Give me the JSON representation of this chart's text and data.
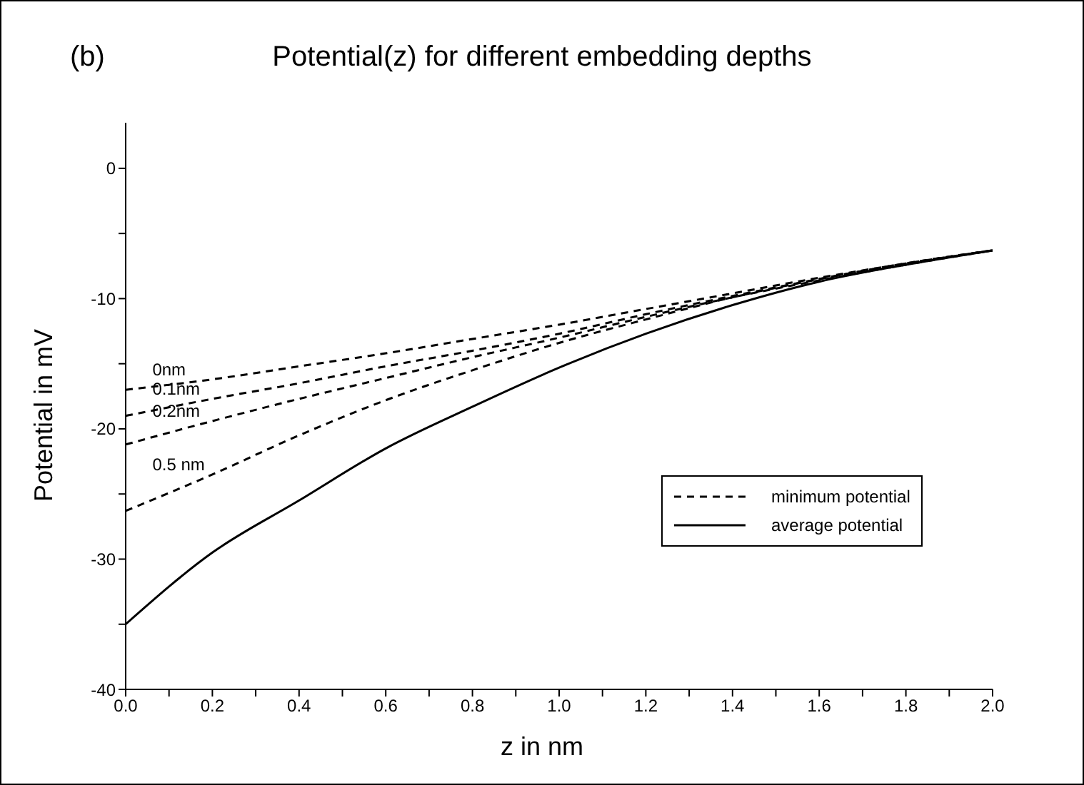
{
  "chart_data": {
    "type": "line",
    "title": "Potential(z) for different embedding depths",
    "xlabel": "z in nm",
    "ylabel": "Potential in mV",
    "annotations": [
      "(b)",
      "minimum potential"
    ],
    "x": [
      0,
      0.2,
      0.4,
      0.6,
      0.8,
      1.0,
      1.2,
      1.4,
      1.6,
      1.8,
      2.0
    ],
    "series": [
      {
        "name": "0nm",
        "color": "#000000",
        "line_style": "dashed",
        "values": [
          -17,
          -16.2,
          -15.2,
          -14.2,
          -13.1,
          -12,
          -10.8,
          -9.6,
          -8.4,
          -7.3,
          -6.3
        ]
      },
      {
        "name": "0.1nm",
        "color": "#000000",
        "line_style": "dashed",
        "values": [
          -19,
          -17.7,
          -16.5,
          -15.2,
          -14,
          -12.7,
          -11.2,
          -9.8,
          -8.5,
          -7.3,
          -6.3
        ]
      },
      {
        "name": "0.2nm",
        "color": "#000000",
        "line_style": "dashed",
        "values": [
          -21.2,
          -19.4,
          -17.7,
          -16.1,
          -14.5,
          -13,
          -11.4,
          -9.9,
          -8.6,
          -7.4,
          -6.3
        ]
      },
      {
        "name": "0.5 nm",
        "color": "#000000",
        "line_style": "dashed",
        "values": [
          -26.3,
          -23.5,
          -20.5,
          -17.8,
          -15.5,
          -13.4,
          -11.6,
          -9.9,
          -8.5,
          -7.3,
          -6.3
        ]
      },
      {
        "name": "average potential",
        "color": "#000000",
        "line_style": "solid",
        "values": [
          -35,
          -29.5,
          -25.5,
          -21.5,
          -18.3,
          -15.3,
          -12.7,
          -10.5,
          -8.7,
          -7.4,
          -6.3
        ]
      }
    ],
    "xlim": [
      0,
      2
    ],
    "xticks": [
      {
        "value": 0,
        "label": "0.0"
      },
      {
        "value": 0.1,
        "label": null
      },
      {
        "value": 0.2,
        "label": "0.2"
      },
      {
        "value": 0.3,
        "label": null
      },
      {
        "value": 0.4,
        "label": "0.4"
      },
      {
        "value": 0.5,
        "label": null
      },
      {
        "value": 0.6,
        "label": "0.6"
      },
      {
        "value": 0.7,
        "label": null
      },
      {
        "value": 0.8,
        "label": "0.8"
      },
      {
        "value": 0.9,
        "label": null
      },
      {
        "value": 1,
        "label": "1.0"
      },
      {
        "value": 1.1,
        "label": null
      },
      {
        "value": 1.2,
        "label": "1.2"
      },
      {
        "value": 1.3,
        "label": null
      },
      {
        "value": 1.4,
        "label": "1.4"
      },
      {
        "value": 1.5,
        "label": null
      },
      {
        "value": 1.6,
        "label": "1.6"
      },
      {
        "value": 1.7,
        "label": null
      },
      {
        "value": 1.8,
        "label": "1.8"
      },
      {
        "value": 1.9,
        "label": null
      },
      {
        "value": 2,
        "label": "2.0"
      }
    ],
    "ylim": [
      -40,
      3.5
    ],
    "yticks": [
      -40,
      {
        "value": -35,
        "label": null
      },
      -30,
      {
        "value": -25,
        "label": null
      },
      -20,
      {
        "value": -15,
        "label": null
      },
      -10,
      {
        "value": -5,
        "label": null
      },
      0
    ],
    "grid": false,
    "legend": "right",
    "marker": "none"
  }
}
